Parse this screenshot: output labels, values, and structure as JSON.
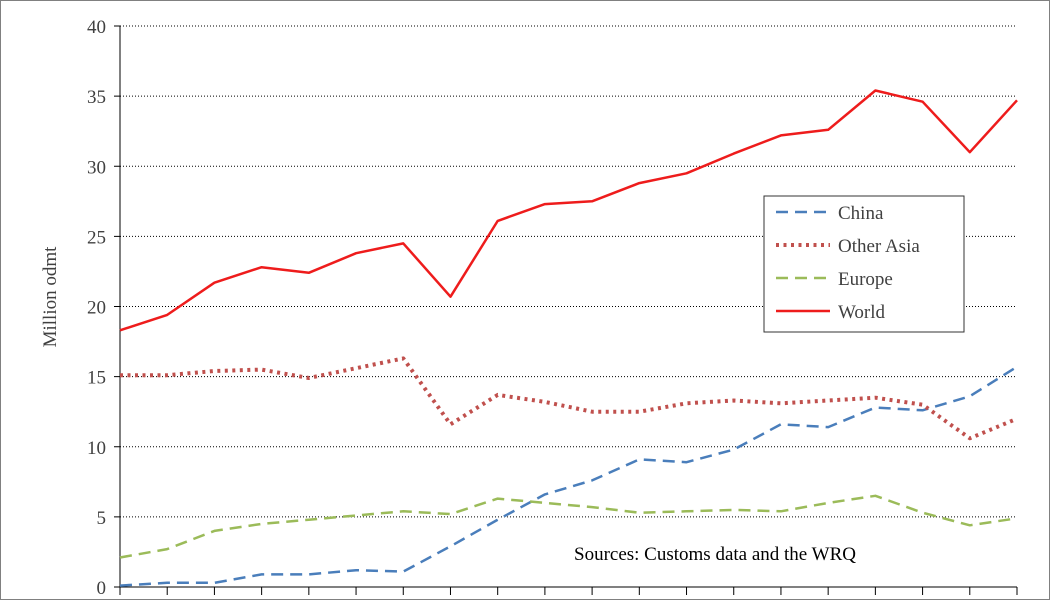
{
  "chart_data": {
    "type": "line",
    "title": "",
    "xlabel": "",
    "ylabel": "Million odmt",
    "ylim": [
      0,
      40
    ],
    "yticks": [
      0,
      5,
      10,
      15,
      20,
      25,
      30,
      35,
      40
    ],
    "grid": "horizontal dotted",
    "legend_position": "right, upper-middle",
    "annotation": "Sources: Customs data and the WRQ",
    "x": [
      1,
      2,
      3,
      4,
      5,
      6,
      7,
      8,
      9,
      10,
      11,
      12,
      13,
      14,
      15,
      16,
      17,
      18,
      19,
      20
    ],
    "series": [
      {
        "name": "China",
        "color": "#4a7ebb",
        "style": "dashed",
        "values": [
          0.1,
          0.3,
          0.3,
          0.9,
          0.9,
          1.2,
          1.1,
          2.9,
          4.8,
          6.6,
          7.6,
          9.1,
          8.9,
          9.8,
          11.6,
          11.4,
          12.8,
          12.6,
          13.6,
          15.7
        ]
      },
      {
        "name": "Other Asia",
        "color": "#c0504d",
        "style": "dotted",
        "values": [
          15.1,
          15.1,
          15.4,
          15.5,
          14.9,
          15.6,
          16.3,
          11.6,
          13.7,
          13.2,
          12.5,
          12.5,
          13.1,
          13.3,
          13.1,
          13.3,
          13.5,
          13.0,
          10.6,
          12.0
        ]
      },
      {
        "name": "Europe",
        "color": "#9bbb59",
        "style": "dashed",
        "values": [
          2.1,
          2.7,
          4.0,
          4.5,
          4.8,
          5.1,
          5.4,
          5.2,
          6.3,
          6.0,
          5.7,
          5.3,
          5.4,
          5.5,
          5.4,
          6.0,
          6.5,
          5.3,
          4.4,
          4.9
        ]
      },
      {
        "name": "World",
        "color": "#ee1c1c",
        "style": "solid",
        "values": [
          18.3,
          19.4,
          21.7,
          22.8,
          22.4,
          23.8,
          24.5,
          20.7,
          26.1,
          27.3,
          27.5,
          28.8,
          29.5,
          30.9,
          32.2,
          32.6,
          35.4,
          34.6,
          31.0,
          34.7
        ]
      }
    ]
  }
}
